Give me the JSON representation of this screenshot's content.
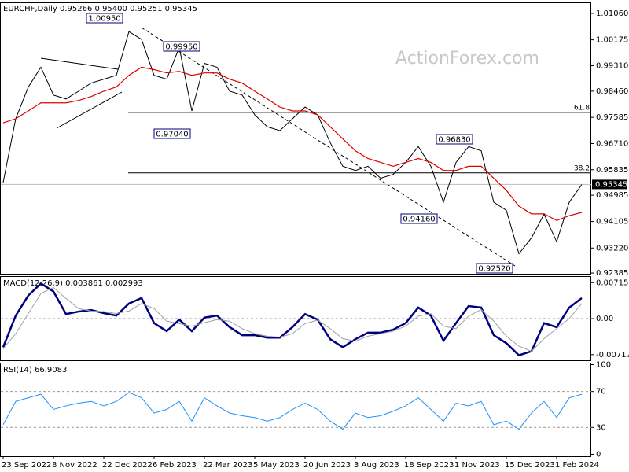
{
  "header": "EURCHF,Daily  0.95266 0.95400 0.95251 0.95345",
  "watermark": "ActionForex.com",
  "chart_data": [
    {
      "type": "line",
      "categories": [
        "23 Sep 2022",
        null,
        null,
        null,
        "8 Nov 2022",
        null,
        null,
        null,
        "22 Dec 2022",
        null,
        null,
        null,
        "6 Feb 2023",
        null,
        null,
        null,
        "22 Mar 2023",
        null,
        null,
        null,
        "5 May 2023",
        null,
        null,
        null,
        "20 Jun 2023",
        null,
        null,
        null,
        "3 Aug 2023",
        null,
        null,
        null,
        "18 Sep 2023",
        null,
        null,
        null,
        "1 Nov 2023",
        null,
        null,
        null,
        "15 Dec 2023",
        null,
        null,
        null,
        "1 Feb 2024",
        null,
        null
      ],
      "series": [
        {
          "color": "#000000",
          "values": [
            0.9541,
            0.9754,
            0.986,
            0.9926,
            0.9833,
            0.982,
            0.9846,
            0.9873,
            0.9886,
            0.9899,
            1.0045,
            1.0019,
            0.9899,
            0.9886,
            0.9992,
            0.978,
            0.9939,
            0.9926,
            0.9846,
            0.9833,
            0.9767,
            0.9727,
            0.9714,
            0.9754,
            0.9793,
            0.9767,
            0.9674,
            0.9595,
            0.9581,
            0.9595,
            0.9555,
            0.9568,
            0.9608,
            0.9661,
            0.9595,
            0.9475,
            0.9608,
            0.9661,
            0.9647,
            0.9475,
            0.9448,
            0.9303,
            0.9356,
            0.9435,
            0.9343,
            0.9475,
            0.9534
          ]
        },
        {
          "color": "#e00000",
          "values": [
            0.974,
            0.9754,
            0.978,
            0.9807,
            0.9807,
            0.9807,
            0.9815,
            0.9828,
            0.9846,
            0.986,
            0.9899,
            0.9926,
            0.9918,
            0.9907,
            0.9912,
            0.9899,
            0.9907,
            0.9907,
            0.9886,
            0.9873,
            0.9846,
            0.982,
            0.9793,
            0.978,
            0.978,
            0.9767,
            0.9727,
            0.9687,
            0.9647,
            0.9621,
            0.9608,
            0.9595,
            0.9608,
            0.9621,
            0.9608,
            0.9581,
            0.9581,
            0.9595,
            0.9595,
            0.9555,
            0.9515,
            0.9462,
            0.9436,
            0.9436,
            0.9414,
            0.943,
            0.9441
          ]
        }
      ],
      "ylim": [
        0.9236,
        1.014
      ],
      "yticks": [
        {
          "value": 1.0106,
          "label": "1.01060"
        },
        {
          "value": 1.00175,
          "label": "1.00175"
        },
        {
          "value": 0.9931,
          "label": "0.99310"
        },
        {
          "value": 0.9846,
          "label": "0.98460"
        },
        {
          "value": 0.97585,
          "label": "0.97585"
        },
        {
          "value": 0.9671,
          "label": "0.96710"
        },
        {
          "value": 0.95835,
          "label": "0.95835"
        },
        {
          "value": 0.94985,
          "label": "0.94985"
        },
        {
          "value": 0.94105,
          "label": "0.94105"
        },
        {
          "value": 0.9322,
          "label": "0.93220"
        },
        {
          "value": 0.92385,
          "label": "0.92385"
        }
      ],
      "levels": [
        {
          "ratio": 61.8,
          "price": 0.9775
        },
        {
          "ratio": 38.2,
          "price": 0.9573
        }
      ],
      "last_price": 0.95345,
      "annotations": [
        "1.00950",
        "0.99950",
        "0.97040",
        "0.96830",
        "0.94160",
        "0.92520"
      ]
    },
    {
      "type": "line",
      "title": "MACD(12,26,9) 0.003861 0.002993",
      "series": [
        {
          "color": "#00007f",
          "values": [
            -0.0057,
            0.0006,
            0.0046,
            0.007,
            0.0054,
            0.0009,
            0.0014,
            0.0017,
            0.0011,
            0.0006,
            0.003,
            0.0041,
            -0.0009,
            -0.0025,
            -0.0002,
            -0.0025,
            0.0002,
            0.0006,
            -0.0017,
            -0.0033,
            -0.0033,
            -0.0038,
            -0.0038,
            -0.0017,
            0.0009,
            -0.0002,
            -0.0041,
            -0.0057,
            -0.0041,
            -0.0028,
            -0.0028,
            -0.0022,
            -0.0009,
            0.0022,
            0.0006,
            -0.0044,
            -0.0009,
            0.0025,
            0.0022,
            -0.0033,
            -0.0049,
            -0.0073,
            -0.0065,
            -0.0009,
            -0.0017,
            0.0022,
            0.0041
          ]
        },
        {
          "color": "#a0a0a0",
          "values": [
            -0.006,
            -0.003,
            0.001,
            0.005,
            0.0062,
            0.004,
            0.002,
            0.0015,
            0.0014,
            0.001,
            0.0015,
            0.003,
            0.002,
            -0.0005,
            -0.001,
            -0.0015,
            -0.0008,
            -0.0002,
            -0.0005,
            -0.002,
            -0.003,
            -0.0035,
            -0.0037,
            -0.003,
            -0.001,
            -0.0003,
            -0.002,
            -0.004,
            -0.0045,
            -0.0035,
            -0.003,
            -0.0025,
            -0.0015,
            0.0005,
            0.001,
            -0.0015,
            -0.002,
            0.0005,
            0.0018,
            -0.0005,
            -0.0035,
            -0.0055,
            -0.0065,
            -0.004,
            -0.002,
            0.0,
            0.003
          ]
        }
      ],
      "ylim": [
        -0.0083,
        0.0083
      ],
      "yticks": [
        0.007159,
        {
          "value": 0,
          "label": "0.00"
        },
        -0.007173
      ]
    },
    {
      "type": "line",
      "title": "RSI(14) 66.9083",
      "series": [
        {
          "color": "#1e90ff",
          "values": [
            33,
            59,
            63,
            67,
            50,
            54,
            57,
            59,
            54,
            59,
            69,
            63,
            46,
            50,
            59,
            37,
            63,
            54,
            46,
            43,
            41,
            37,
            41,
            50,
            57,
            50,
            37,
            28,
            46,
            41,
            43,
            48,
            54,
            63,
            50,
            37,
            57,
            54,
            59,
            33,
            37,
            28,
            46,
            59,
            41,
            63,
            67
          ]
        }
      ],
      "ylim": [
        -2.2,
        101.3
      ],
      "yticks": [
        100,
        70,
        30,
        0
      ]
    }
  ]
}
